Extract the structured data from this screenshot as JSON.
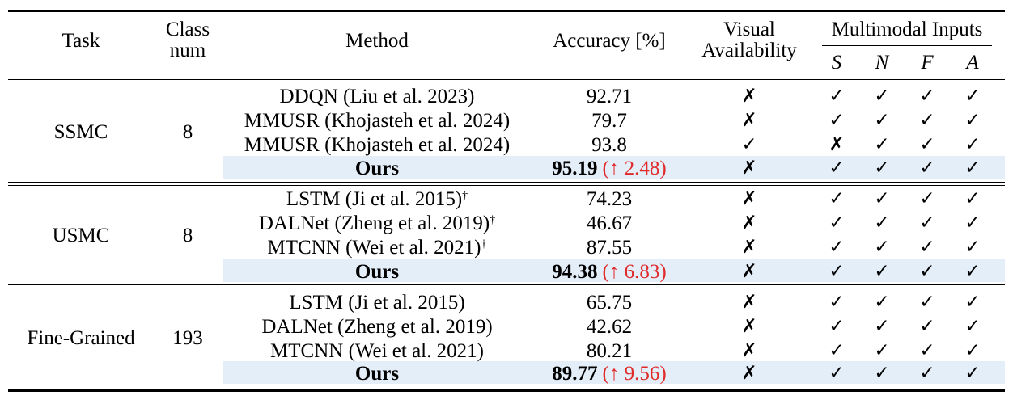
{
  "header": {
    "task": "Task",
    "class_num_line1": "Class",
    "class_num_line2": "num",
    "method": "Method",
    "accuracy": "Accuracy [%]",
    "visual_line1": "Visual",
    "visual_line2": "Availability",
    "multimodal": "Multimodal Inputs",
    "modalities": [
      "S",
      "N",
      "F",
      "A"
    ]
  },
  "symbols": {
    "check": "✓",
    "cross": "✗",
    "dagger": "†"
  },
  "groups": [
    {
      "task": "SSMC",
      "class_num": "8",
      "rows": [
        {
          "method": "DDQN (Liu et al. 2023)",
          "dagger": false,
          "accuracy": "92.71",
          "gain": "",
          "visual": "✗",
          "inputs": [
            "✓",
            "✓",
            "✓",
            "✓"
          ],
          "ours": false
        },
        {
          "method": "MMUSR (Khojasteh et al. 2024)",
          "dagger": false,
          "accuracy": "79.7",
          "gain": "",
          "visual": "✗",
          "inputs": [
            "✓",
            "✓",
            "✓",
            "✓"
          ],
          "ours": false
        },
        {
          "method": "MMUSR (Khojasteh et al. 2024)",
          "dagger": false,
          "accuracy": "93.8",
          "gain": "",
          "visual": "✓",
          "inputs": [
            "✗",
            "✓",
            "✓",
            "✓"
          ],
          "ours": false
        },
        {
          "method": "Ours",
          "dagger": false,
          "accuracy": "95.19",
          "gain": "(↑ 2.48)",
          "visual": "✗",
          "inputs": [
            "✓",
            "✓",
            "✓",
            "✓"
          ],
          "ours": true
        }
      ]
    },
    {
      "task": "USMC",
      "class_num": "8",
      "rows": [
        {
          "method": "LSTM (Ji et al. 2015)",
          "dagger": true,
          "accuracy": "74.23",
          "gain": "",
          "visual": "✗",
          "inputs": [
            "✓",
            "✓",
            "✓",
            "✓"
          ],
          "ours": false
        },
        {
          "method": "DALNet (Zheng et al. 2019)",
          "dagger": true,
          "accuracy": "46.67",
          "gain": "",
          "visual": "✗",
          "inputs": [
            "✓",
            "✓",
            "✓",
            "✓"
          ],
          "ours": false
        },
        {
          "method": "MTCNN (Wei et al. 2021)",
          "dagger": true,
          "accuracy": "87.55",
          "gain": "",
          "visual": "✗",
          "inputs": [
            "✓",
            "✓",
            "✓",
            "✓"
          ],
          "ours": false
        },
        {
          "method": "Ours",
          "dagger": false,
          "accuracy": "94.38",
          "gain": "(↑ 6.83)",
          "visual": "✗",
          "inputs": [
            "✓",
            "✓",
            "✓",
            "✓"
          ],
          "ours": true
        }
      ]
    },
    {
      "task": "Fine-Grained",
      "class_num": "193",
      "rows": [
        {
          "method": "LSTM (Ji et al. 2015)",
          "dagger": false,
          "accuracy": "65.75",
          "gain": "",
          "visual": "✗",
          "inputs": [
            "✓",
            "✓",
            "✓",
            "✓"
          ],
          "ours": false
        },
        {
          "method": "DALNet (Zheng et al. 2019)",
          "dagger": false,
          "accuracy": "42.62",
          "gain": "",
          "visual": "✗",
          "inputs": [
            "✓",
            "✓",
            "✓",
            "✓"
          ],
          "ours": false
        },
        {
          "method": "MTCNN (Wei et al. 2021)",
          "dagger": false,
          "accuracy": "80.21",
          "gain": "",
          "visual": "✗",
          "inputs": [
            "✓",
            "✓",
            "✓",
            "✓"
          ],
          "ours": false
        },
        {
          "method": "Ours",
          "dagger": false,
          "accuracy": "89.77",
          "gain": "(↑ 9.56)",
          "visual": "✗",
          "inputs": [
            "✓",
            "✓",
            "✓",
            "✓"
          ],
          "ours": true
        }
      ]
    }
  ]
}
